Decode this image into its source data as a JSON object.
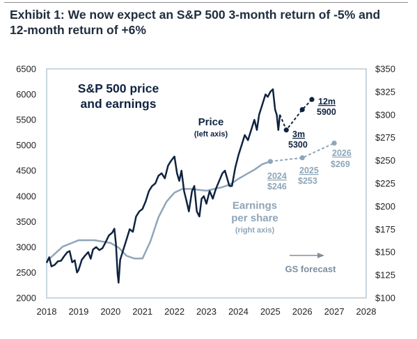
{
  "exhibit": {
    "title_line1": "Exhibit 1: We now expect an S&P 500 3-month return of -5% and",
    "title_line2": "12-month return of +6%"
  },
  "colors": {
    "price": "#0f2340",
    "earnings": "#8fa5b8",
    "forecast_label": "#7c8fa0",
    "frame": "#b7c9d6",
    "text": "#222222"
  },
  "chart_data": {
    "type": "line",
    "title": "S&P 500 price and earnings",
    "title_line1": "S&P 500 price",
    "title_line2": "and earnings",
    "x_ticks": [
      "2018",
      "2019",
      "2020",
      "2021",
      "2022",
      "2023",
      "2024",
      "2025",
      "2026",
      "2027",
      "2028"
    ],
    "xlim": [
      2018,
      2028
    ],
    "y_left": {
      "ticks": [
        "2000",
        "2500",
        "3000",
        "3500",
        "4000",
        "4500",
        "5000",
        "5500",
        "6000",
        "6500"
      ],
      "range": [
        2000,
        6500
      ]
    },
    "y_right": {
      "ticks": [
        "$100",
        "$125",
        "$150",
        "$175",
        "$200",
        "$225",
        "$250",
        "$275",
        "$300",
        "$325",
        "$350"
      ],
      "range": [
        100,
        350
      ]
    },
    "grid": false,
    "series": [
      {
        "name": "Price",
        "axis": "left",
        "note": "(left axis)",
        "x": [
          2018.0,
          2018.08,
          2018.15,
          2018.25,
          2018.35,
          2018.45,
          2018.55,
          2018.65,
          2018.72,
          2018.8,
          2018.88,
          2018.95,
          2019.0,
          2019.1,
          2019.2,
          2019.3,
          2019.38,
          2019.45,
          2019.55,
          2019.65,
          2019.75,
          2019.85,
          2019.95,
          2020.05,
          2020.12,
          2020.17,
          2020.22,
          2020.25,
          2020.3,
          2020.4,
          2020.5,
          2020.6,
          2020.7,
          2020.8,
          2020.9,
          2021.0,
          2021.1,
          2021.2,
          2021.3,
          2021.4,
          2021.5,
          2021.6,
          2021.7,
          2021.8,
          2021.9,
          2022.0,
          2022.08,
          2022.15,
          2022.22,
          2022.3,
          2022.38,
          2022.45,
          2022.55,
          2022.62,
          2022.7,
          2022.78,
          2022.85,
          2022.92,
          2023.0,
          2023.1,
          2023.2,
          2023.3,
          2023.4,
          2023.5,
          2023.58,
          2023.65,
          2023.72,
          2023.8,
          2023.9,
          2024.0,
          2024.1,
          2024.2,
          2024.3,
          2024.4,
          2024.5,
          2024.58,
          2024.65,
          2024.75,
          2024.85,
          2024.92,
          2025.0,
          2025.08,
          2025.15,
          2025.2,
          2025.25,
          2025.3
        ],
        "values": [
          2690,
          2800,
          2620,
          2650,
          2720,
          2730,
          2820,
          2900,
          2920,
          2700,
          2740,
          2500,
          2550,
          2750,
          2830,
          2900,
          2770,
          2950,
          3000,
          2940,
          2980,
          3100,
          3230,
          3280,
          3360,
          3050,
          2480,
          2300,
          2750,
          2950,
          3150,
          3350,
          3300,
          3600,
          3700,
          3750,
          3900,
          4100,
          4200,
          4250,
          4400,
          4450,
          4350,
          4600,
          4700,
          4780,
          4450,
          4300,
          4500,
          4100,
          3900,
          3700,
          4100,
          4200,
          3700,
          3600,
          3950,
          4000,
          3850,
          4100,
          3950,
          4150,
          4300,
          4450,
          4500,
          4350,
          4200,
          4200,
          4550,
          4800,
          5000,
          5200,
          5100,
          5300,
          5500,
          5300,
          5600,
          5800,
          6000,
          5950,
          6050,
          6100,
          5700,
          5600,
          5300,
          5600
        ]
      },
      {
        "name": "Earnings per share",
        "axis": "right",
        "note": "(right axis)",
        "x": [
          2018.0,
          2018.5,
          2019.0,
          2019.5,
          2020.0,
          2020.25,
          2020.5,
          2020.75,
          2021.0,
          2021.25,
          2021.5,
          2021.75,
          2022.0,
          2022.25,
          2022.5,
          2022.75,
          2023.0,
          2023.25,
          2023.5,
          2023.75,
          2024.0,
          2024.25,
          2024.5,
          2024.75,
          2025.0
        ],
        "values": [
          140,
          156,
          163,
          163,
          160,
          155,
          146,
          143,
          143,
          162,
          188,
          205,
          215,
          219,
          219,
          218,
          217,
          219,
          221,
          224,
          230,
          235,
          240,
          246,
          249
        ]
      },
      {
        "name": "Price forecast",
        "axis": "left",
        "style": "dashed",
        "x": [
          2025.3,
          2025.5,
          2026.0,
          2026.3
        ],
        "values": [
          5600,
          5300,
          5700,
          5900
        ]
      },
      {
        "name": "EPS forecast",
        "axis": "right",
        "style": "dashed",
        "x": [
          2025.0,
          2026.0,
          2027.0
        ],
        "values": [
          249,
          253,
          269
        ]
      }
    ],
    "annotations": {
      "price_label": "Price",
      "price_note": "(left axis)",
      "earnings_label_line1": "Earnings",
      "earnings_label_line2": "per share",
      "earnings_note": "(right axis)",
      "forecast_3m_head": "3m",
      "forecast_3m_value": "5300",
      "forecast_12m_head": "12m",
      "forecast_12m_value": "5900",
      "eps_2024_year": "2024",
      "eps_2024_value": "$246",
      "eps_2025_year": "2025",
      "eps_2025_value": "$253",
      "eps_2026_year": "2026",
      "eps_2026_value": "$269",
      "gs_forecast": "GS forecast"
    }
  }
}
